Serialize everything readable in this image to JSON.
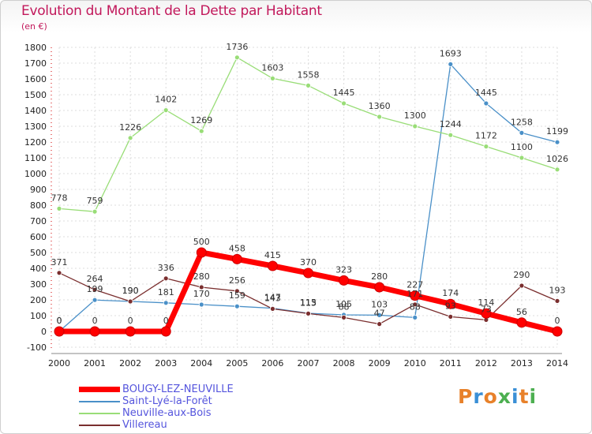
{
  "header": {
    "title": "Evolution du Montant de la Dette par Habitant",
    "subtitle": "(en €)"
  },
  "brand": {
    "text": "Proxiti"
  },
  "chart_data": {
    "type": "line",
    "title": "Evolution du Montant de la Dette par Habitant",
    "subtitle": "(en €)",
    "xlabel": "",
    "ylabel": "",
    "x": [
      2000,
      2001,
      2002,
      2003,
      2004,
      2005,
      2006,
      2007,
      2008,
      2009,
      2010,
      2011,
      2012,
      2013,
      2014
    ],
    "ylim": [
      -100,
      1800
    ],
    "yticks": [
      -100,
      0,
      100,
      200,
      300,
      400,
      500,
      600,
      700,
      800,
      900,
      1000,
      1100,
      1200,
      1300,
      1400,
      1500,
      1600,
      1700,
      1800
    ],
    "grid": true,
    "legend_position": "bottom-left",
    "series": [
      {
        "name": "BOUGY-LEZ-NEUVILLE",
        "color": "#ff0000",
        "values": [
          0,
          0,
          0,
          0,
          500,
          458,
          415,
          370,
          323,
          280,
          227,
          174,
          114,
          56,
          0
        ],
        "labels": [
          "0",
          "0",
          "0",
          "0",
          "500",
          "458",
          "415",
          "370",
          "323",
          "280",
          "227",
          "174",
          "114",
          "56",
          "0"
        ]
      },
      {
        "name": "Saint-Lyé-la-Forêt",
        "color": "#4a90c8",
        "values": [
          0,
          199,
          190,
          181,
          170,
          159,
          147,
          115,
          105,
          103,
          88,
          1693,
          1445,
          1258,
          1199
        ],
        "labels": [
          "0",
          "199",
          "190",
          "181",
          "170",
          "159",
          "147",
          "115",
          "105",
          "103",
          "88",
          "1693",
          "1445",
          "1258",
          "1199"
        ]
      },
      {
        "name": "Neuville-aux-Bois",
        "color": "#99dd77",
        "values": [
          778,
          759,
          1226,
          1402,
          1269,
          1736,
          1603,
          1558,
          1445,
          1360,
          1300,
          1244,
          1172,
          1100,
          1026
        ],
        "labels": [
          "778",
          "759",
          "1226",
          "1402",
          "1269",
          "1736",
          "1603",
          "1558",
          "1445",
          "1360",
          "1300",
          "1244",
          "1172",
          "1100",
          "1026"
        ]
      },
      {
        "name": "Villereau",
        "color": "#7a2e2e",
        "values": [
          371,
          264,
          190,
          336,
          280,
          256,
          143,
          113,
          88,
          47,
          171,
          93,
          73,
          290,
          193
        ],
        "labels": [
          "371",
          "264",
          "190",
          "336",
          "280",
          "256",
          "143",
          "113",
          "88",
          "47",
          "171",
          "93",
          "73",
          "290",
          "193"
        ]
      }
    ]
  }
}
